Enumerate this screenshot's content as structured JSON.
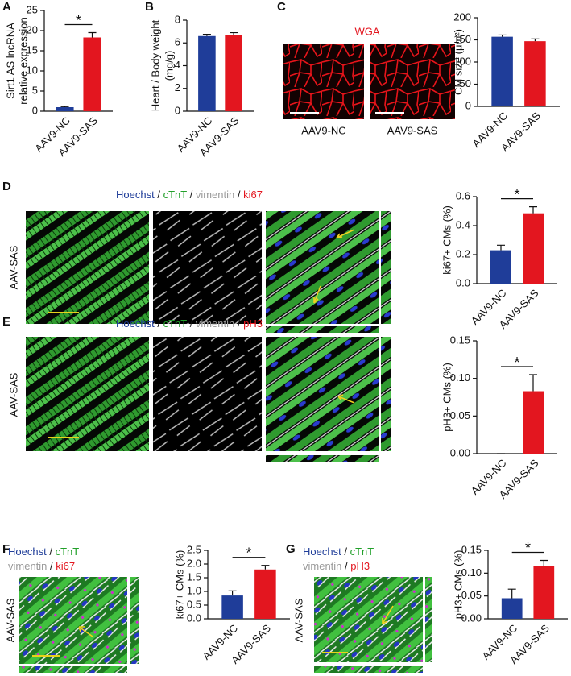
{
  "panels": {
    "letters": [
      "A",
      "B",
      "C",
      "D",
      "E",
      "F",
      "G"
    ]
  },
  "images": {
    "wga": "WGA",
    "groups": [
      "AAV9-NC",
      "AAV9-SAS"
    ],
    "condition": "AAV-SAS",
    "separator": "/",
    "stains_ki67": [
      "Hoechst",
      "cTnT",
      "vimentin",
      "ki67"
    ],
    "stains_ph3": [
      "Hoechst",
      "cTnT",
      "vimentin",
      "pH3"
    ]
  },
  "chart_data": [
    {
      "type": "bar",
      "ylabel": [
        "Sirt1 AS lncRNA",
        "relative expression"
      ],
      "categories": [
        "AAV9-NC",
        "AAV9-SAS"
      ],
      "values": [
        1,
        18.3
      ],
      "errors": [
        0.15,
        1.2
      ],
      "colors": [
        "#1f3d99",
        "#e3161f"
      ],
      "ylim": [
        0,
        25
      ],
      "yticks": [
        0,
        5,
        10,
        15,
        20,
        25
      ],
      "annotation": "*"
    },
    {
      "type": "bar",
      "ylabel": [
        "Heart / Body weight",
        "(mg/g)"
      ],
      "categories": [
        "AAV9-NC",
        "AAV9-SAS"
      ],
      "values": [
        6.6,
        6.7
      ],
      "errors": [
        0.15,
        0.2
      ],
      "colors": [
        "#1f3d99",
        "#e3161f"
      ],
      "ylim": [
        0,
        8
      ],
      "yticks": [
        0,
        2,
        4,
        6,
        8
      ]
    },
    {
      "type": "bar",
      "ylabel": [
        "CM size (μm²)"
      ],
      "categories": [
        "AAV9-NC",
        "AAV9-SAS"
      ],
      "values": [
        157,
        147
      ],
      "errors": [
        4,
        5
      ],
      "colors": [
        "#1f3d99",
        "#e3161f"
      ],
      "ylim": [
        0,
        200
      ],
      "yticks": [
        0,
        50,
        100,
        150,
        200
      ]
    },
    {
      "type": "bar",
      "ylabel": [
        "ki67+ CMs (%)"
      ],
      "categories": [
        "AAV9-NC",
        "AAV9-SAS"
      ],
      "values": [
        0.23,
        0.485
      ],
      "errors": [
        0.035,
        0.045
      ],
      "colors": [
        "#1f3d99",
        "#e3161f"
      ],
      "ylim": [
        0,
        0.6
      ],
      "yticks": [
        {
          "value": 0,
          "label": "0.0"
        },
        0.2,
        0.4,
        0.6
      ],
      "annotation": "*"
    },
    {
      "type": "bar",
      "ylabel": [
        "pH3+ CMs (%)"
      ],
      "categories": [
        "AAV9-NC",
        "AAV9-SAS"
      ],
      "values": [
        0,
        0.083
      ],
      "errors": [
        0,
        0.022
      ],
      "colors": [
        "#1f3d99",
        "#e3161f"
      ],
      "ylim": [
        0,
        0.15
      ],
      "yticks": [
        {
          "value": 0,
          "label": "0.00"
        },
        {
          "value": 0.05,
          "label": "0.05"
        },
        {
          "value": 0.1,
          "label": "0.10"
        },
        {
          "value": 0.15,
          "label": "0.15"
        }
      ],
      "annotation": "*"
    },
    {
      "type": "bar",
      "ylabel": [
        "ki67+ CMs (%)"
      ],
      "categories": [
        "AAV9-NC",
        "AAV9-SAS"
      ],
      "values": [
        0.85,
        1.8
      ],
      "errors": [
        0.17,
        0.15
      ],
      "colors": [
        "#1f3d99",
        "#e3161f"
      ],
      "ylim": [
        0,
        2.5
      ],
      "yticks": [
        {
          "value": 0,
          "label": "0.0"
        },
        0.5,
        {
          "value": 1,
          "label": "1.0"
        },
        1.5,
        {
          "value": 2,
          "label": "2.0"
        },
        2.5
      ],
      "annotation": "*"
    },
    {
      "type": "bar",
      "ylabel": [
        "pH3+ CMs (%)"
      ],
      "categories": [
        "AAV9-NC",
        "AAV9-SAS"
      ],
      "values": [
        0.045,
        0.115
      ],
      "errors": [
        0.02,
        0.013
      ],
      "colors": [
        "#1f3d99",
        "#e3161f"
      ],
      "ylim": [
        0,
        0.15
      ],
      "yticks": [
        {
          "value": 0,
          "label": "0.00"
        },
        {
          "value": 0.05,
          "label": "0.05"
        },
        {
          "value": 0.1,
          "label": "0.10"
        },
        {
          "value": 0.15,
          "label": "0.15"
        }
      ],
      "annotation": "*"
    }
  ]
}
